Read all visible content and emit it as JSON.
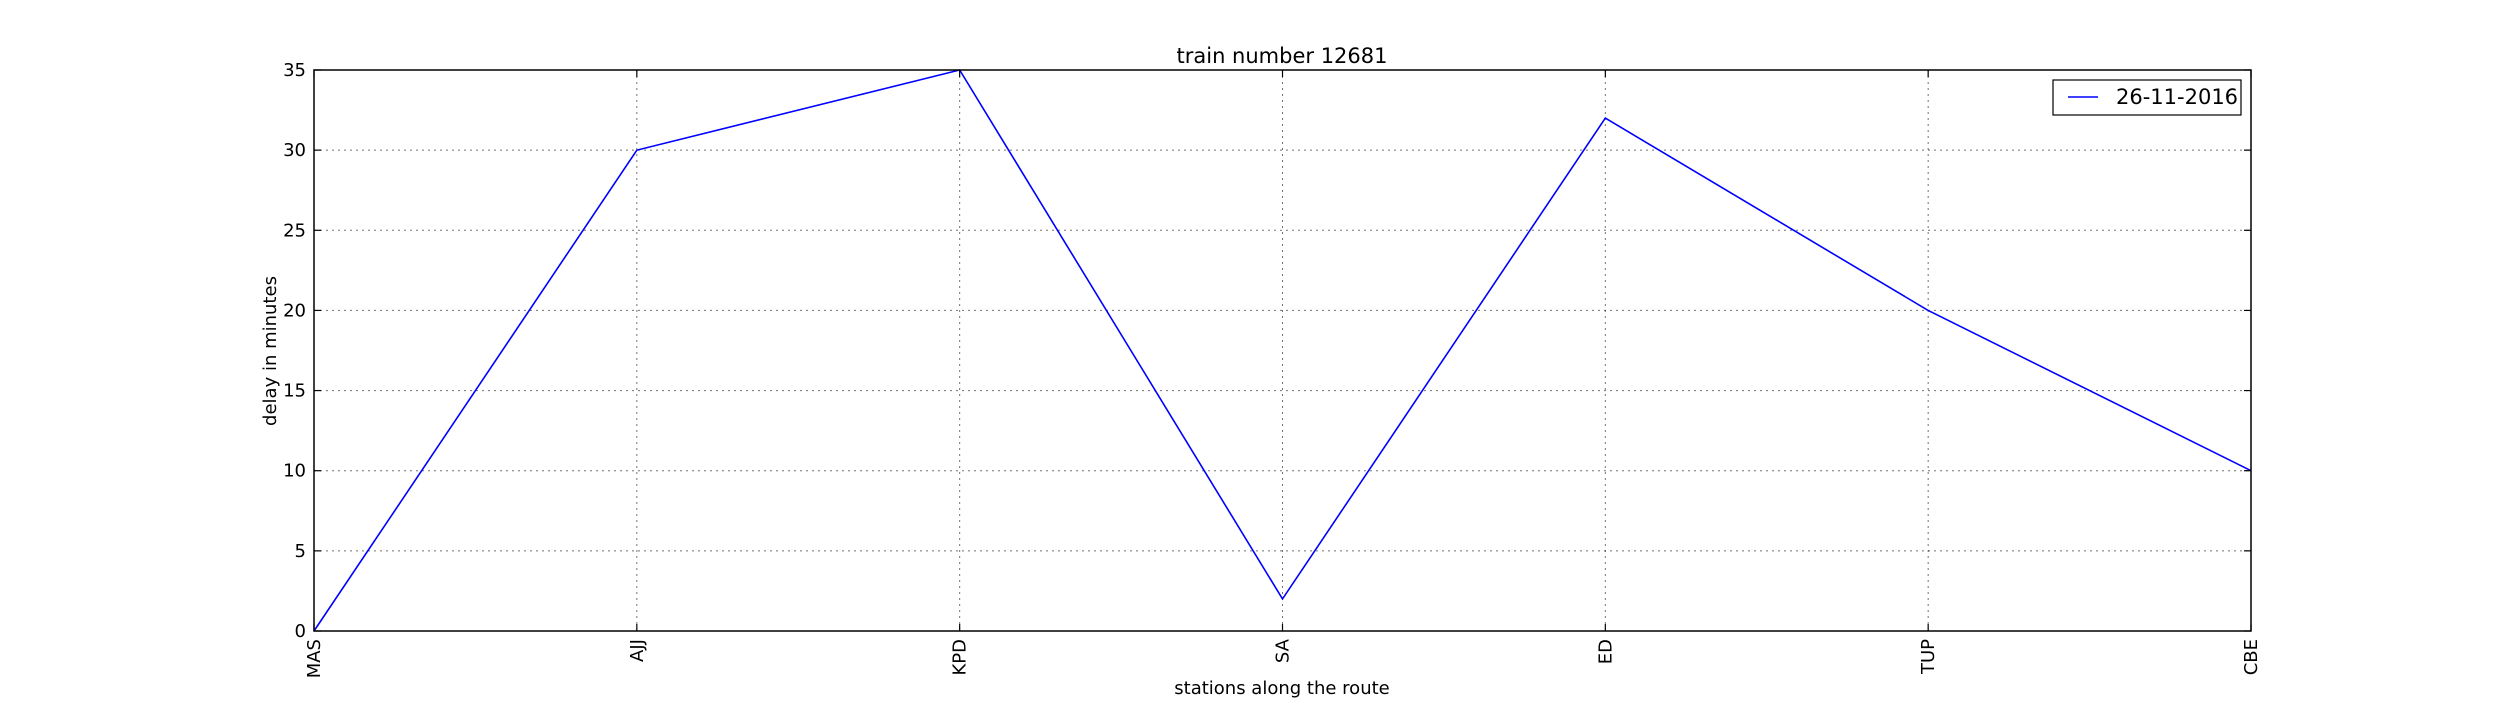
{
  "chart_data": {
    "type": "line",
    "title": "train number 12681",
    "xlabel": "stations along the route",
    "ylabel": "delay in minutes",
    "categories": [
      "MAS",
      "AJJ",
      "KPD",
      "SA",
      "ED",
      "TUP",
      "CBE"
    ],
    "series": [
      {
        "name": "26-11-2016",
        "color": "#0000ff",
        "values": [
          0,
          30,
          35,
          2,
          32,
          20,
          10
        ]
      }
    ],
    "ylim": [
      0,
      35
    ],
    "yticks": [
      0,
      5,
      10,
      15,
      20,
      25,
      30,
      35
    ],
    "grid": true,
    "legend_position": "top-right"
  }
}
